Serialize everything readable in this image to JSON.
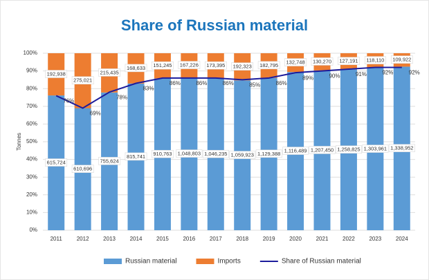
{
  "chart_data": {
    "type": "bar",
    "stacking": "percent",
    "title": "Share of Russian material",
    "y_label": "Tonnes",
    "categories": [
      "2011",
      "2012",
      "2013",
      "2014",
      "2015",
      "2016",
      "2017",
      "2018",
      "2019",
      "2020",
      "2021",
      "2022",
      "2023",
      "2024"
    ],
    "series": [
      {
        "name": "Russian material",
        "color": "#5b9bd5",
        "values": [
          615724,
          610696,
          755624,
          815741,
          910763,
          1048803,
          1046235,
          1059923,
          1129388,
          1116489,
          1207450,
          1258825,
          1303961,
          1338952
        ],
        "value_labels": [
          "615,724",
          "610,696",
          "755,624",
          "815,741",
          "910,763",
          "1,048,803",
          "1,046,235",
          "1,059,923",
          "1,129,388",
          "1,116,489",
          "1,207,450",
          "1,258,825",
          "1,303,961",
          "1,338,952"
        ]
      },
      {
        "name": "Imports",
        "color": "#ed7d31",
        "values": [
          192938,
          275021,
          215435,
          168633,
          151245,
          167226,
          173395,
          192323,
          182795,
          132748,
          130270,
          127191,
          118110,
          109922
        ],
        "value_labels": [
          "192,938",
          "275,021",
          "215,435",
          "168,633",
          "151,245",
          "167,226",
          "173,395",
          "192,323",
          "182,795",
          "132,748",
          "130,270",
          "127,191",
          "118,110",
          "109,922"
        ]
      },
      {
        "name": "Share of Russian material",
        "color": "#1c1c9c",
        "type": "line",
        "values": [
          76,
          69,
          78,
          83,
          86,
          86,
          86,
          85,
          86,
          89,
          90,
          91,
          92,
          92
        ],
        "value_labels": [
          "76%",
          "69%",
          "78%",
          "83%",
          "86%",
          "86%",
          "86%",
          "85%",
          "86%",
          "89%",
          "90%",
          "91%",
          "92%",
          "92%"
        ]
      }
    ],
    "ylim": [
      0,
      100
    ],
    "yticks": [
      {
        "value": 0,
        "label": "0%"
      },
      {
        "value": 10,
        "label": "10%"
      },
      {
        "value": 20,
        "label": "20%"
      },
      {
        "value": 30,
        "label": "30%"
      },
      {
        "value": 40,
        "label": "40%"
      },
      {
        "value": 50,
        "label": "50%"
      },
      {
        "value": 60,
        "label": "60%"
      },
      {
        "value": 70,
        "label": "70%"
      },
      {
        "value": 80,
        "label": "80%"
      },
      {
        "value": 90,
        "label": "90%"
      },
      {
        "value": 100,
        "label": "100%"
      }
    ],
    "grid": true,
    "legend": "bottom"
  }
}
